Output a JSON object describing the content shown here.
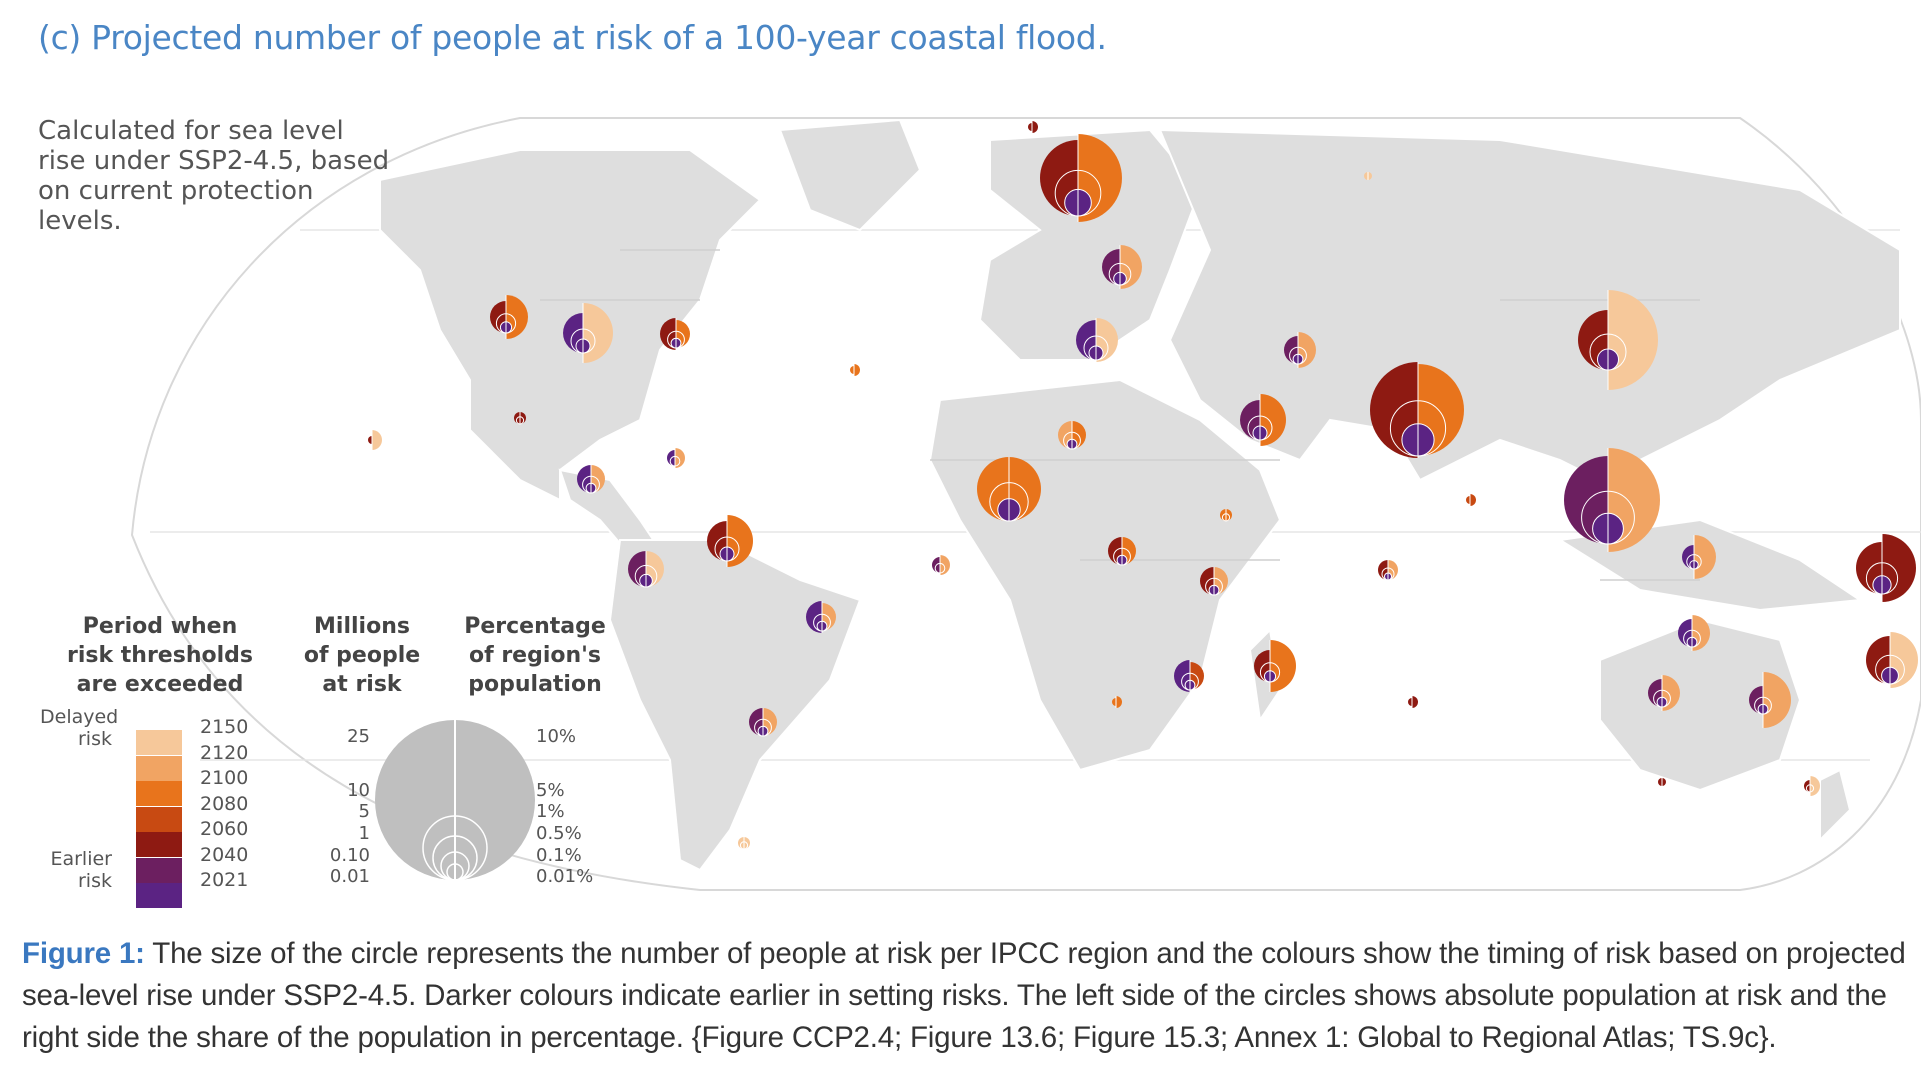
{
  "title": "(c) Projected number of people at risk of a 100-year coastal flood.",
  "note": [
    "Calculated for sea level",
    "rise under SSP2-4.5, based",
    "on current protection",
    "levels."
  ],
  "legend": {
    "period_heading": [
      "Period when",
      "risk thresholds",
      "are exceeded"
    ],
    "millions_heading": [
      "Millions",
      "of people",
      "at risk"
    ],
    "percent_heading": [
      "Percentage",
      "of region's",
      "population"
    ],
    "delayed_label": [
      "Delayed",
      "risk"
    ],
    "earlier_label": [
      "Earlier",
      "risk"
    ],
    "years": [
      {
        "year": "2150",
        "color": "#f6c89a"
      },
      {
        "year": "2120",
        "color": "#f1a463"
      },
      {
        "year": "2100",
        "color": "#e8741c"
      },
      {
        "year": "2080",
        "color": "#c84a12"
      },
      {
        "year": "2060",
        "color": "#8e1a12"
      },
      {
        "year": "2040",
        "color": "#6c1f60"
      },
      {
        "year": "2021",
        "color": "#5b2383"
      }
    ],
    "millions_values": [
      "25",
      "10",
      "5",
      "1",
      "0.10",
      "0.01"
    ],
    "percent_values": [
      "10%",
      "5%",
      "1%",
      "0.5%",
      "0.1%",
      "0.01%"
    ]
  },
  "caption": {
    "label": "Figure 1:",
    "lines": [
      " The size of the circle represents the number of people at risk per IPCC region and the colours show the timing of risk based on projected",
      "sea-level rise under SSP2-4.5. Darker colours indicate earlier in setting risks. The left side of the circles shows absolute population at risk and the",
      "right side the share of the population in percentage. {Figure CCP2.4; Figure 13.6; Figure 15.3; Annex 1: Global to Regional Atlas; TS.9c}."
    ]
  }
}
